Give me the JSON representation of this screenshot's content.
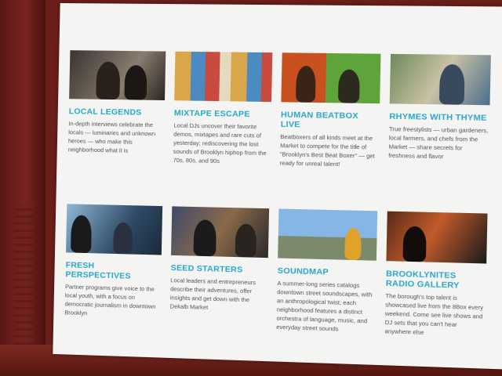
{
  "cards": [
    {
      "title": "LOCAL LEGENDS",
      "desc": "In-depth interviews celebrate the locals — luminaries and unknown heroes — who make this neighborhood what it is"
    },
    {
      "title": "MIXTAPE ESCAPE",
      "desc": "Local DJs uncover their favorite demos, mixtapes and rare cuts of yesterday; rediscovering the lost sounds of Brooklyn hiphop from the 70s, 80s, and 90s"
    },
    {
      "title": "HUMAN BEATBOX LIVE",
      "desc": "Beatboxers of all kinds meet at the Market to compete for the title of \"Brooklyn's Best Beat Boxer\" — get ready for unreal talent!"
    },
    {
      "title": "RHYMES WITH THYME",
      "desc": "True freestylists — urban gardeners, local farmers, and chefs from the Market — share secrets for freshness and flavor"
    },
    {
      "title": "FRESH PERSPECTIVES",
      "desc": "Partner programs give voice to the local youth, with a focus on democratic journalism in downtown Brooklyn"
    },
    {
      "title": "SEED STARTERS",
      "desc": "Local leaders and entrepreneurs describe their adventures, offer insights and get down with the Dekalb Market"
    },
    {
      "title": "SOUNDMAP",
      "desc": "A summer-long series catalogs downtown street soundscapes, with an anthropological twist; each neighborhood features a distinct orchestra of language, music, and everyday street sounds"
    },
    {
      "title": "BROOKLYNITES RADIO GALLERY",
      "desc": "The borough's top talent is showcased live from the 8Box every weekend. Come see live shows and DJ sets that you can't hear anywhere else"
    }
  ]
}
